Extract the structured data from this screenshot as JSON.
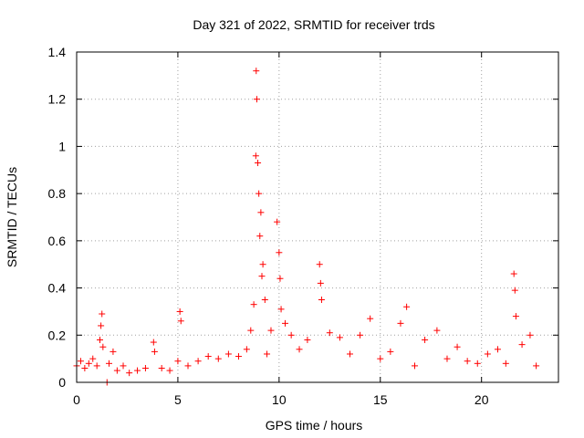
{
  "chart_data": {
    "type": "scatter",
    "title": "Day 321 of 2022, SRMTID for receiver trds",
    "xlabel": "GPS time / hours",
    "ylabel": "SRMTID / TECUs",
    "xlim": [
      0,
      23.8
    ],
    "ylim": [
      0,
      1.4
    ],
    "x_ticks": [
      0,
      5,
      10,
      15,
      20
    ],
    "x_tick_labels": [
      "0",
      "5",
      "10",
      "15",
      "20"
    ],
    "y_ticks": [
      0,
      0.2,
      0.4,
      0.6,
      0.8,
      1.0,
      1.2,
      1.4
    ],
    "y_tick_labels": [
      "0",
      "0.2",
      "0.4",
      "0.6",
      "0.8",
      "1",
      "1.2",
      "1.4"
    ],
    "grid": true,
    "marker": "+",
    "series": [
      {
        "name": "SRMTID",
        "color": "#ff0000",
        "points": [
          [
            0.0,
            0.07
          ],
          [
            0.2,
            0.09
          ],
          [
            0.4,
            0.06
          ],
          [
            0.6,
            0.08
          ],
          [
            0.8,
            0.1
          ],
          [
            1.0,
            0.07
          ],
          [
            1.15,
            0.18
          ],
          [
            1.2,
            0.24
          ],
          [
            1.25,
            0.29
          ],
          [
            1.3,
            0.15
          ],
          [
            1.5,
            0.0
          ],
          [
            1.6,
            0.08
          ],
          [
            1.8,
            0.13
          ],
          [
            2.0,
            0.05
          ],
          [
            2.3,
            0.07
          ],
          [
            2.6,
            0.04
          ],
          [
            3.0,
            0.05
          ],
          [
            3.4,
            0.06
          ],
          [
            3.8,
            0.17
          ],
          [
            3.85,
            0.13
          ],
          [
            4.2,
            0.06
          ],
          [
            4.6,
            0.05
          ],
          [
            5.0,
            0.09
          ],
          [
            5.1,
            0.3
          ],
          [
            5.15,
            0.26
          ],
          [
            5.5,
            0.07
          ],
          [
            6.0,
            0.09
          ],
          [
            6.5,
            0.11
          ],
          [
            7.0,
            0.1
          ],
          [
            7.5,
            0.12
          ],
          [
            8.0,
            0.11
          ],
          [
            8.4,
            0.14
          ],
          [
            8.6,
            0.22
          ],
          [
            8.75,
            0.33
          ],
          [
            8.85,
            0.96
          ],
          [
            8.87,
            1.32
          ],
          [
            8.9,
            1.2
          ],
          [
            8.95,
            0.93
          ],
          [
            9.0,
            0.8
          ],
          [
            9.05,
            0.62
          ],
          [
            9.1,
            0.72
          ],
          [
            9.15,
            0.45
          ],
          [
            9.2,
            0.5
          ],
          [
            9.3,
            0.35
          ],
          [
            9.4,
            0.12
          ],
          [
            9.6,
            0.22
          ],
          [
            9.9,
            0.68
          ],
          [
            10.0,
            0.55
          ],
          [
            10.05,
            0.44
          ],
          [
            10.1,
            0.31
          ],
          [
            10.3,
            0.25
          ],
          [
            10.6,
            0.2
          ],
          [
            11.0,
            0.14
          ],
          [
            11.4,
            0.18
          ],
          [
            12.0,
            0.5
          ],
          [
            12.05,
            0.42
          ],
          [
            12.1,
            0.35
          ],
          [
            12.5,
            0.21
          ],
          [
            13.0,
            0.19
          ],
          [
            13.5,
            0.12
          ],
          [
            14.0,
            0.2
          ],
          [
            14.5,
            0.27
          ],
          [
            15.0,
            0.1
          ],
          [
            15.5,
            0.13
          ],
          [
            16.0,
            0.25
          ],
          [
            16.3,
            0.32
          ],
          [
            16.7,
            0.07
          ],
          [
            17.2,
            0.18
          ],
          [
            17.8,
            0.22
          ],
          [
            18.3,
            0.1
          ],
          [
            18.8,
            0.15
          ],
          [
            19.3,
            0.09
          ],
          [
            19.8,
            0.08
          ],
          [
            20.3,
            0.12
          ],
          [
            20.8,
            0.14
          ],
          [
            21.2,
            0.08
          ],
          [
            21.6,
            0.46
          ],
          [
            21.65,
            0.39
          ],
          [
            21.7,
            0.28
          ],
          [
            22.0,
            0.16
          ],
          [
            22.4,
            0.2
          ],
          [
            22.7,
            0.07
          ]
        ]
      }
    ]
  }
}
